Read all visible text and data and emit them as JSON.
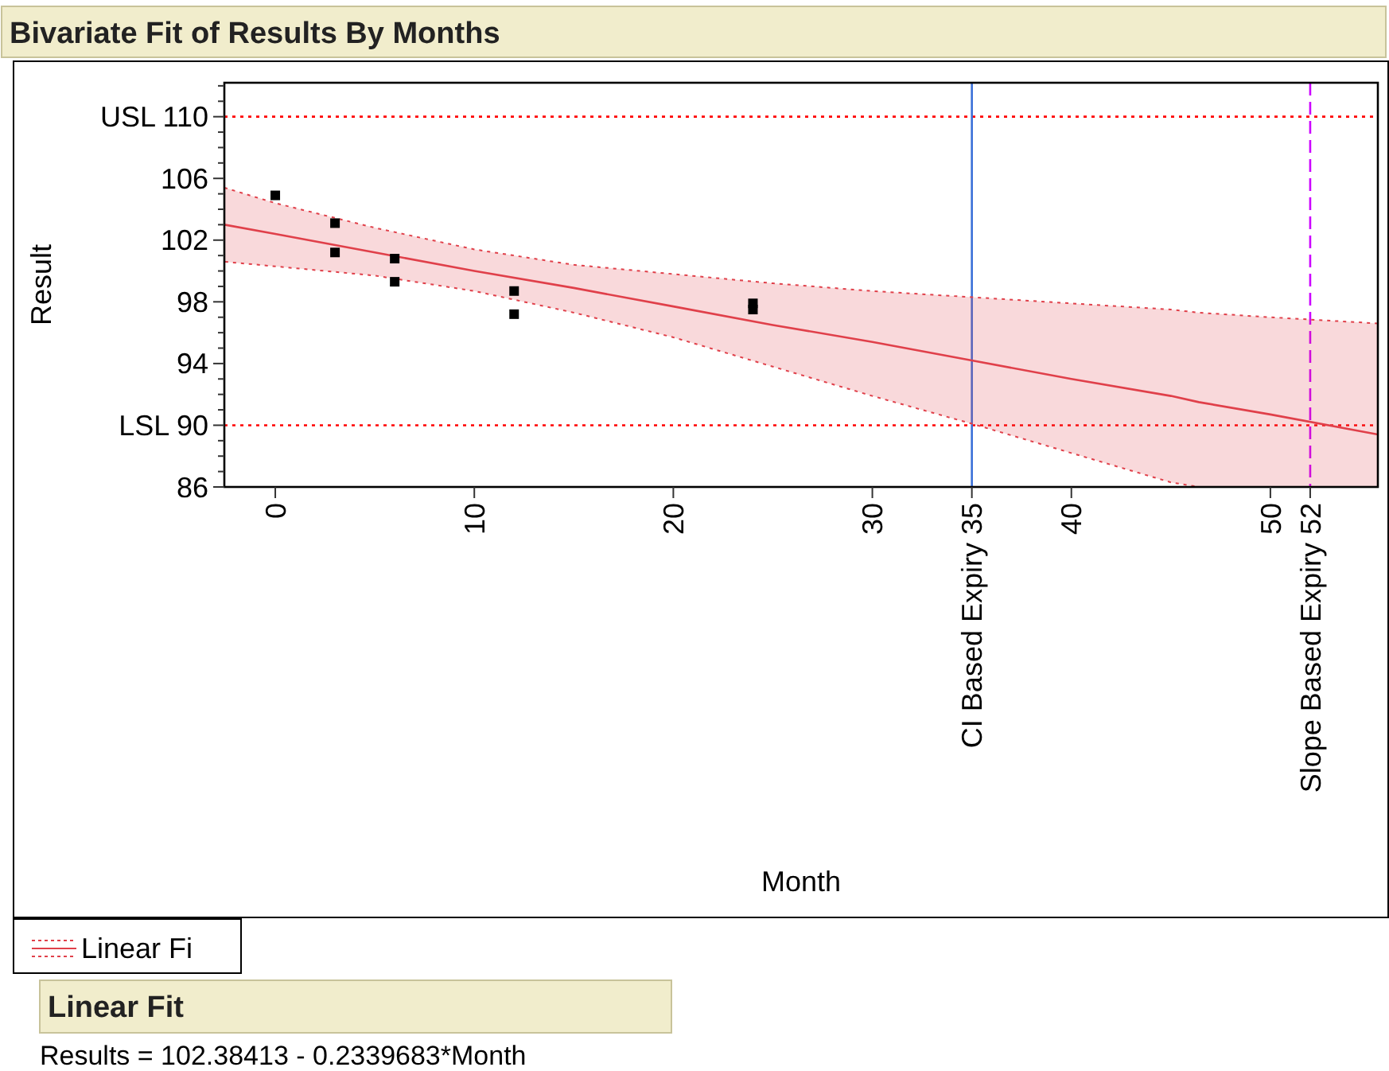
{
  "chart_data": {
    "type": "scatter",
    "title": "Bivariate Fit of Results By Months",
    "xlabel": "Month",
    "ylabel": "Result",
    "annotations": [
      "Linear Fit",
      "Results = 102.38413 - 0.2339683*Month"
    ],
    "xlim": [
      -2.56,
      55.4
    ],
    "ylim": [
      86,
      112.2
    ],
    "xticks": [
      0,
      10,
      20,
      30,
      {
        "value": 35,
        "label": "CI Based Expiry 35"
      },
      40,
      50,
      {
        "value": 52,
        "label": "Slope Based Expiry 52"
      }
    ],
    "yticks": [
      86,
      {
        "value": 87,
        "label": null
      },
      {
        "value": 88,
        "label": null
      },
      {
        "value": 89,
        "label": null
      },
      {
        "value": 90,
        "label": "LSL 90"
      },
      {
        "value": 91,
        "label": null
      },
      {
        "value": 92,
        "label": null
      },
      {
        "value": 93,
        "label": null
      },
      94,
      {
        "value": 95,
        "label": null
      },
      {
        "value": 96,
        "label": null
      },
      {
        "value": 97,
        "label": null
      },
      98,
      {
        "value": 99,
        "label": null
      },
      {
        "value": 100,
        "label": null
      },
      {
        "value": 101,
        "label": null
      },
      102,
      {
        "value": 103,
        "label": null
      },
      {
        "value": 104,
        "label": null
      },
      {
        "value": 105,
        "label": null
      },
      106,
      {
        "value": 107,
        "label": null
      },
      {
        "value": 108,
        "label": null
      },
      {
        "value": 109,
        "label": null
      },
      {
        "value": 110,
        "label": "USL 110"
      },
      {
        "value": 111,
        "label": null
      },
      {
        "value": 112,
        "label": null
      }
    ],
    "grid": false,
    "legend": "bottom left",
    "series": [
      {
        "color": "#000000",
        "marker": "square",
        "x": [
          0,
          3,
          3,
          6,
          6,
          12,
          12,
          24,
          24
        ],
        "values": [
          104.9,
          103.1,
          101.2,
          100.8,
          99.3,
          98.7,
          97.2,
          97.9,
          97.5
        ]
      },
      {
        "type": "line",
        "name": "Linear Fi",
        "color": "#e0404a",
        "line_style": "solid",
        "x": [
          -2.56,
          0,
          5,
          10,
          15,
          20,
          25,
          30,
          35,
          40,
          45,
          46.4,
          50,
          55.4
        ],
        "values": [
          103,
          102.4,
          101.2,
          100,
          98.9,
          97.7,
          96.5,
          95.4,
          94.2,
          93,
          91.9,
          91.5,
          90.7,
          89.4
        ],
        "upper": [
          105.4,
          104.4,
          102.8,
          101.4,
          100.4,
          99.8,
          99.2,
          98.7,
          98.3,
          97.9,
          97.5,
          97.3,
          97,
          96.6
        ],
        "lower": [
          100.6,
          100.3,
          99.7,
          98.7,
          97.3,
          95.7,
          93.8,
          91.9,
          90.1,
          88.2,
          86.3,
          86,
          86,
          86
        ]
      }
    ],
    "ref_lines": [
      {
        "axis": "y",
        "value": 110,
        "color": "#ff0000",
        "line_style": "dotted"
      },
      {
        "axis": "y",
        "value": 90,
        "color": "#ff0000",
        "line_style": "dotted"
      },
      {
        "axis": "x",
        "value": 35,
        "color": "#3a6fd8",
        "line_style": "solid"
      },
      {
        "axis": "x",
        "value": 52,
        "color": "#cc00ff",
        "line_style": "dashed"
      }
    ]
  }
}
